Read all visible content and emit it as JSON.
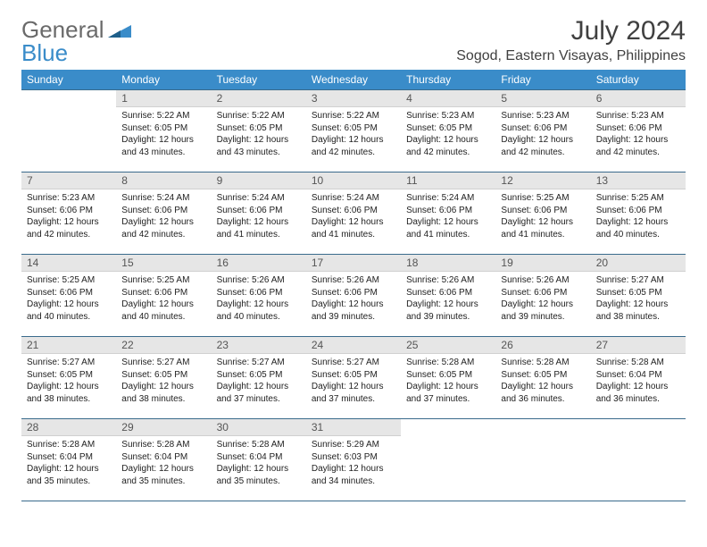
{
  "brand": {
    "word1": "General",
    "word2": "Blue"
  },
  "title": "July 2024",
  "location": "Sogod, Eastern Visayas, Philippines",
  "colors": {
    "header_bg": "#3a8cc9",
    "rule": "#3a6b8c",
    "daynum_bg": "#e6e6e6",
    "text": "#333333"
  },
  "day_headers": [
    "Sunday",
    "Monday",
    "Tuesday",
    "Wednesday",
    "Thursday",
    "Friday",
    "Saturday"
  ],
  "weeks": [
    [
      {
        "n": "",
        "sr": "",
        "ss": "",
        "dl": ""
      },
      {
        "n": "1",
        "sr": "5:22 AM",
        "ss": "6:05 PM",
        "dl": "12 hours and 43 minutes."
      },
      {
        "n": "2",
        "sr": "5:22 AM",
        "ss": "6:05 PM",
        "dl": "12 hours and 43 minutes."
      },
      {
        "n": "3",
        "sr": "5:22 AM",
        "ss": "6:05 PM",
        "dl": "12 hours and 42 minutes."
      },
      {
        "n": "4",
        "sr": "5:23 AM",
        "ss": "6:05 PM",
        "dl": "12 hours and 42 minutes."
      },
      {
        "n": "5",
        "sr": "5:23 AM",
        "ss": "6:06 PM",
        "dl": "12 hours and 42 minutes."
      },
      {
        "n": "6",
        "sr": "5:23 AM",
        "ss": "6:06 PM",
        "dl": "12 hours and 42 minutes."
      }
    ],
    [
      {
        "n": "7",
        "sr": "5:23 AM",
        "ss": "6:06 PM",
        "dl": "12 hours and 42 minutes."
      },
      {
        "n": "8",
        "sr": "5:24 AM",
        "ss": "6:06 PM",
        "dl": "12 hours and 42 minutes."
      },
      {
        "n": "9",
        "sr": "5:24 AM",
        "ss": "6:06 PM",
        "dl": "12 hours and 41 minutes."
      },
      {
        "n": "10",
        "sr": "5:24 AM",
        "ss": "6:06 PM",
        "dl": "12 hours and 41 minutes."
      },
      {
        "n": "11",
        "sr": "5:24 AM",
        "ss": "6:06 PM",
        "dl": "12 hours and 41 minutes."
      },
      {
        "n": "12",
        "sr": "5:25 AM",
        "ss": "6:06 PM",
        "dl": "12 hours and 41 minutes."
      },
      {
        "n": "13",
        "sr": "5:25 AM",
        "ss": "6:06 PM",
        "dl": "12 hours and 40 minutes."
      }
    ],
    [
      {
        "n": "14",
        "sr": "5:25 AM",
        "ss": "6:06 PM",
        "dl": "12 hours and 40 minutes."
      },
      {
        "n": "15",
        "sr": "5:25 AM",
        "ss": "6:06 PM",
        "dl": "12 hours and 40 minutes."
      },
      {
        "n": "16",
        "sr": "5:26 AM",
        "ss": "6:06 PM",
        "dl": "12 hours and 40 minutes."
      },
      {
        "n": "17",
        "sr": "5:26 AM",
        "ss": "6:06 PM",
        "dl": "12 hours and 39 minutes."
      },
      {
        "n": "18",
        "sr": "5:26 AM",
        "ss": "6:06 PM",
        "dl": "12 hours and 39 minutes."
      },
      {
        "n": "19",
        "sr": "5:26 AM",
        "ss": "6:06 PM",
        "dl": "12 hours and 39 minutes."
      },
      {
        "n": "20",
        "sr": "5:27 AM",
        "ss": "6:05 PM",
        "dl": "12 hours and 38 minutes."
      }
    ],
    [
      {
        "n": "21",
        "sr": "5:27 AM",
        "ss": "6:05 PM",
        "dl": "12 hours and 38 minutes."
      },
      {
        "n": "22",
        "sr": "5:27 AM",
        "ss": "6:05 PM",
        "dl": "12 hours and 38 minutes."
      },
      {
        "n": "23",
        "sr": "5:27 AM",
        "ss": "6:05 PM",
        "dl": "12 hours and 37 minutes."
      },
      {
        "n": "24",
        "sr": "5:27 AM",
        "ss": "6:05 PM",
        "dl": "12 hours and 37 minutes."
      },
      {
        "n": "25",
        "sr": "5:28 AM",
        "ss": "6:05 PM",
        "dl": "12 hours and 37 minutes."
      },
      {
        "n": "26",
        "sr": "5:28 AM",
        "ss": "6:05 PM",
        "dl": "12 hours and 36 minutes."
      },
      {
        "n": "27",
        "sr": "5:28 AM",
        "ss": "6:04 PM",
        "dl": "12 hours and 36 minutes."
      }
    ],
    [
      {
        "n": "28",
        "sr": "5:28 AM",
        "ss": "6:04 PM",
        "dl": "12 hours and 35 minutes."
      },
      {
        "n": "29",
        "sr": "5:28 AM",
        "ss": "6:04 PM",
        "dl": "12 hours and 35 minutes."
      },
      {
        "n": "30",
        "sr": "5:28 AM",
        "ss": "6:04 PM",
        "dl": "12 hours and 35 minutes."
      },
      {
        "n": "31",
        "sr": "5:29 AM",
        "ss": "6:03 PM",
        "dl": "12 hours and 34 minutes."
      },
      {
        "n": "",
        "sr": "",
        "ss": "",
        "dl": ""
      },
      {
        "n": "",
        "sr": "",
        "ss": "",
        "dl": ""
      },
      {
        "n": "",
        "sr": "",
        "ss": "",
        "dl": ""
      }
    ]
  ],
  "labels": {
    "sunrise": "Sunrise:",
    "sunset": "Sunset:",
    "daylight": "Daylight:"
  }
}
